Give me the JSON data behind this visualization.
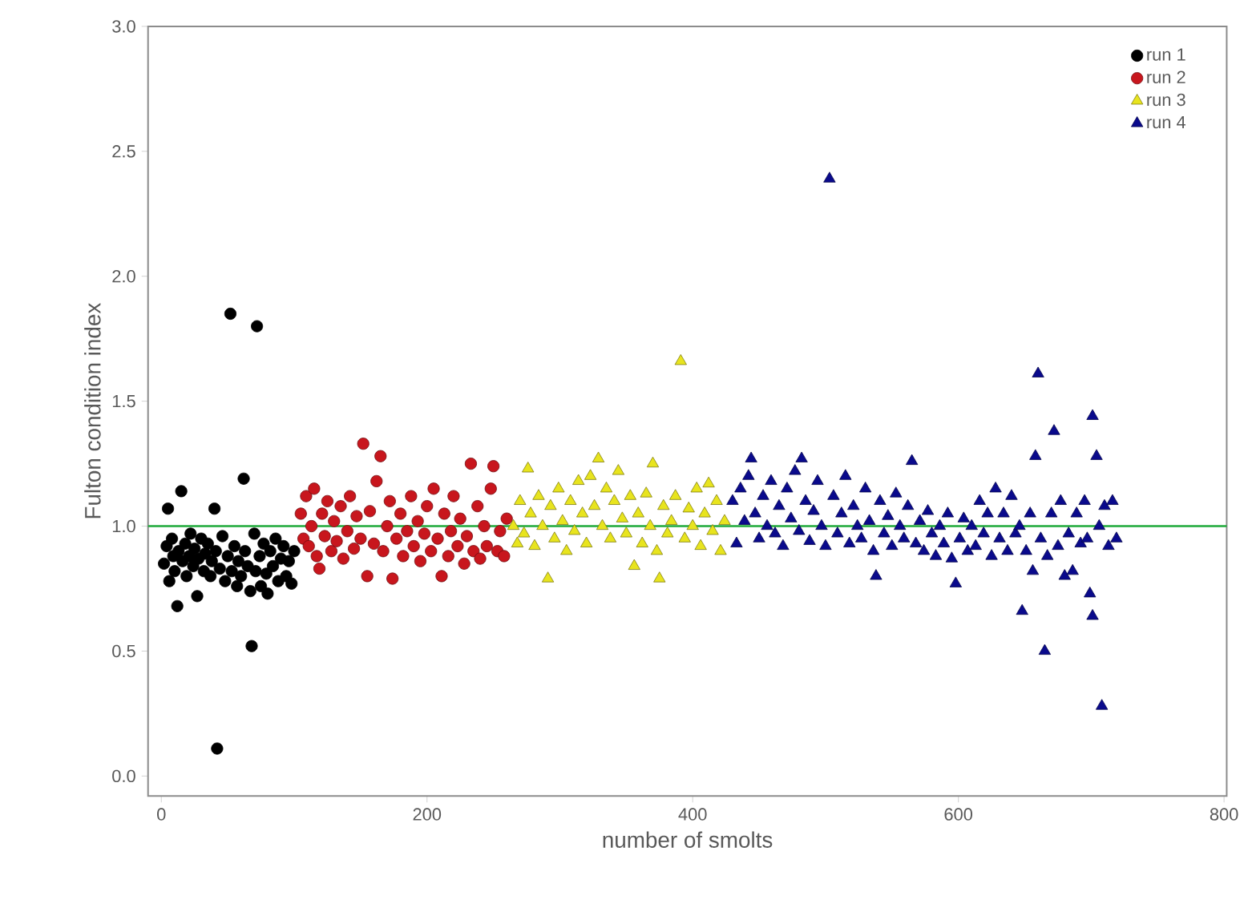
{
  "chart_data": {
    "type": "scatter",
    "xlabel": "number of smolts",
    "ylabel": "Fulton condition index",
    "xlim": [
      -10,
      802
    ],
    "ylim": [
      -0.08,
      3.0
    ],
    "xticks": [
      0,
      200,
      400,
      600,
      800
    ],
    "yticks": [
      {
        "value": 0,
        "label": "0.0"
      },
      {
        "value": 0.5,
        "label": "0.5"
      },
      {
        "value": 1,
        "label": "1.0"
      },
      {
        "value": 1.5,
        "label": "1.5"
      },
      {
        "value": 2,
        "label": "2.0"
      },
      {
        "value": 2.5,
        "label": "2.5"
      },
      {
        "value": 3,
        "label": "3.0"
      }
    ],
    "legend": "top right",
    "grid": false,
    "ref_lines": [
      {
        "axis": "y",
        "value": 1,
        "color": "#1faa3a"
      }
    ],
    "series": [
      {
        "name": "run 1",
        "color": "#000000",
        "marker": "circle",
        "x": [
          2,
          4,
          5,
          6,
          8,
          9,
          10,
          12,
          13,
          15,
          16,
          18,
          19,
          21,
          22,
          24,
          25,
          27,
          28,
          30,
          32,
          33,
          35,
          37,
          38,
          40,
          41,
          42,
          44,
          46,
          48,
          50,
          52,
          53,
          55,
          57,
          58,
          60,
          62,
          63,
          65,
          67,
          68,
          70,
          71,
          72,
          74,
          75,
          77,
          79,
          80,
          82,
          84,
          86,
          88,
          90,
          92,
          94,
          96,
          98,
          100
        ],
        "values": [
          0.85,
          0.92,
          1.07,
          0.78,
          0.95,
          0.88,
          0.82,
          0.68,
          0.9,
          1.14,
          0.86,
          0.93,
          0.8,
          0.88,
          0.97,
          0.84,
          0.91,
          0.72,
          0.87,
          0.95,
          0.82,
          0.89,
          0.93,
          0.8,
          0.86,
          1.07,
          0.9,
          0.11,
          0.83,
          0.96,
          0.78,
          0.88,
          1.85,
          0.82,
          0.92,
          0.76,
          0.86,
          0.8,
          1.19,
          0.9,
          0.84,
          0.74,
          0.52,
          0.97,
          0.82,
          1.8,
          0.88,
          0.76,
          0.93,
          0.81,
          0.73,
          0.9,
          0.84,
          0.95,
          0.78,
          0.87,
          0.92,
          0.8,
          0.86,
          0.77,
          0.9
        ]
      },
      {
        "name": "run 2",
        "color": "#c8161d",
        "marker": "circle",
        "x": [
          105,
          107,
          109,
          111,
          113,
          115,
          117,
          119,
          121,
          123,
          125,
          128,
          130,
          132,
          135,
          137,
          140,
          142,
          145,
          147,
          150,
          152,
          155,
          157,
          160,
          162,
          165,
          167,
          170,
          172,
          174,
          177,
          180,
          182,
          185,
          188,
          190,
          193,
          195,
          198,
          200,
          203,
          205,
          208,
          211,
          213,
          216,
          218,
          220,
          223,
          225,
          228,
          230,
          233,
          235,
          238,
          240,
          243,
          245,
          248,
          250,
          253,
          255,
          258,
          260
        ],
        "values": [
          1.05,
          0.95,
          1.12,
          0.92,
          1.0,
          1.15,
          0.88,
          0.83,
          1.05,
          0.96,
          1.1,
          0.9,
          1.02,
          0.94,
          1.08,
          0.87,
          0.98,
          1.12,
          0.91,
          1.04,
          0.95,
          1.33,
          0.8,
          1.06,
          0.93,
          1.18,
          1.28,
          0.9,
          1.0,
          1.1,
          0.79,
          0.95,
          1.05,
          0.88,
          0.98,
          1.12,
          0.92,
          1.02,
          0.86,
          0.97,
          1.08,
          0.9,
          1.15,
          0.95,
          0.8,
          1.05,
          0.88,
          0.98,
          1.12,
          0.92,
          1.03,
          0.85,
          0.96,
          1.25,
          0.9,
          1.08,
          0.87,
          1.0,
          0.92,
          1.15,
          1.24,
          0.9,
          0.98,
          0.88,
          1.03
        ]
      },
      {
        "name": "run 3",
        "color": "#e8e41e",
        "marker": "triangle",
        "x": [
          265,
          268,
          270,
          273,
          276,
          278,
          281,
          284,
          287,
          291,
          293,
          296,
          299,
          302,
          305,
          308,
          311,
          314,
          317,
          320,
          323,
          326,
          329,
          332,
          335,
          338,
          341,
          344,
          347,
          350,
          353,
          356,
          359,
          362,
          365,
          368,
          370,
          373,
          375,
          378,
          381,
          384,
          387,
          391,
          394,
          397,
          400,
          403,
          406,
          409,
          412,
          415,
          418,
          421,
          424
        ],
        "values": [
          1.0,
          0.93,
          1.1,
          0.97,
          1.23,
          1.05,
          0.92,
          1.12,
          1.0,
          0.79,
          1.08,
          0.95,
          1.15,
          1.02,
          0.9,
          1.1,
          0.98,
          1.18,
          1.05,
          0.93,
          1.2,
          1.08,
          1.27,
          1.0,
          1.15,
          0.95,
          1.1,
          1.22,
          1.03,
          0.97,
          1.12,
          0.84,
          1.05,
          0.93,
          1.13,
          1.0,
          1.25,
          0.9,
          0.79,
          1.08,
          0.97,
          1.02,
          1.12,
          1.66,
          0.95,
          1.07,
          1.0,
          1.15,
          0.92,
          1.05,
          1.17,
          0.98,
          1.1,
          0.9,
          1.02
        ]
      },
      {
        "name": "run 4",
        "color": "#0a0a8c",
        "marker": "triangle",
        "x": [
          430,
          433,
          436,
          439,
          442,
          444,
          447,
          450,
          453,
          456,
          459,
          462,
          465,
          468,
          471,
          474,
          477,
          480,
          482,
          485,
          488,
          491,
          494,
          497,
          500,
          503,
          506,
          509,
          512,
          515,
          518,
          521,
          524,
          527,
          530,
          533,
          536,
          538,
          541,
          544,
          547,
          550,
          553,
          556,
          559,
          562,
          565,
          568,
          571,
          574,
          577,
          580,
          583,
          586,
          589,
          592,
          595,
          598,
          601,
          604,
          607,
          610,
          613,
          616,
          619,
          622,
          625,
          628,
          631,
          634,
          637,
          640,
          643,
          646,
          648,
          651,
          654,
          656,
          658,
          660,
          662,
          665,
          667,
          670,
          672,
          675,
          677,
          680,
          683,
          686,
          689,
          692,
          695,
          697,
          699,
          701,
          701,
          704,
          706,
          708,
          710,
          713,
          716,
          719
        ],
        "values": [
          1.1,
          0.93,
          1.15,
          1.02,
          1.2,
          1.27,
          1.05,
          0.95,
          1.12,
          1.0,
          1.18,
          0.97,
          1.08,
          0.92,
          1.15,
          1.03,
          1.22,
          0.98,
          1.27,
          1.1,
          0.94,
          1.06,
          1.18,
          1.0,
          0.92,
          2.39,
          1.12,
          0.97,
          1.05,
          1.2,
          0.93,
          1.08,
          1.0,
          0.95,
          1.15,
          1.02,
          0.9,
          0.8,
          1.1,
          0.97,
          1.04,
          0.92,
          1.13,
          1.0,
          0.95,
          1.08,
          1.26,
          0.93,
          1.02,
          0.9,
          1.06,
          0.97,
          0.88,
          1.0,
          0.93,
          1.05,
          0.87,
          0.77,
          0.95,
          1.03,
          0.9,
          1.0,
          0.92,
          1.1,
          0.97,
          1.05,
          0.88,
          1.15,
          0.95,
          1.05,
          0.9,
          1.12,
          0.97,
          1.0,
          0.66,
          0.9,
          1.05,
          0.82,
          1.28,
          1.61,
          0.95,
          0.5,
          0.88,
          1.05,
          1.38,
          0.92,
          1.1,
          0.8,
          0.97,
          0.82,
          1.05,
          0.93,
          1.1,
          0.95,
          0.73,
          1.44,
          0.64,
          1.28,
          1.0,
          0.28,
          1.08,
          0.92,
          1.1,
          0.95
        ]
      }
    ]
  }
}
